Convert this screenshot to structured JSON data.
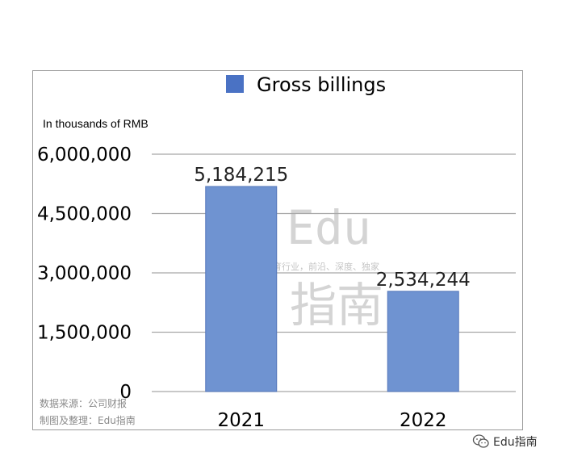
{
  "chart_data": {
    "type": "bar",
    "categories": [
      "2021",
      "2022"
    ],
    "series": [
      {
        "name": "Gross billings",
        "values": [
          5184215,
          2534244
        ],
        "labels": [
          "5,184,215",
          "2,534,244"
        ]
      }
    ],
    "ylim": [
      0,
      6000000
    ],
    "yticks": [
      0,
      1500000,
      3000000,
      4500000,
      6000000
    ],
    "ytick_labels": [
      "0",
      "1,500,000",
      "3,000,000",
      "4,500,000",
      "6,000,000"
    ],
    "unit_label": "In thousands of RMB",
    "legend_position": "top",
    "grid": true,
    "colors": {
      "bar": "#6f93d1",
      "bar_outline": "#5577bb",
      "legend_swatch": "#4a72c4",
      "grid": "#a8a8a8"
    }
  },
  "source": {
    "line1": "数据来源：公司财报",
    "line2": "制图及整理：Edu指南"
  },
  "watermark": {
    "top": "Edu",
    "tagline": "教育行业，前沿、深度、独家",
    "bottom": "指南"
  },
  "brand": {
    "icon": "wechat-icon",
    "label": "Edu指南"
  }
}
